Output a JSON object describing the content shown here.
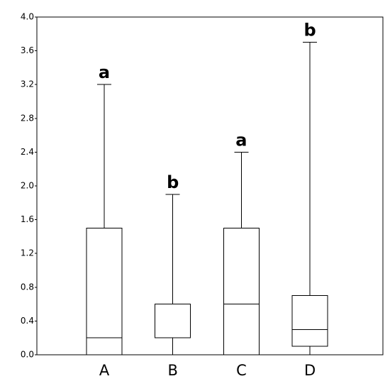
{
  "chart_data": {
    "type": "box",
    "categories": [
      "A",
      "B",
      "C",
      "D"
    ],
    "min": [
      0,
      0,
      0,
      0
    ],
    "q1": [
      0,
      0.2,
      0,
      0.1
    ],
    "median": [
      0.2,
      0.2,
      0.6,
      0.3
    ],
    "q3": [
      1.5,
      0.6,
      1.5,
      0.7
    ],
    "max": [
      3.2,
      1.9,
      2.4,
      3.7
    ],
    "annotations": [
      "a",
      "b",
      "a",
      "b"
    ],
    "color": "#000000",
    "ylim": [
      0,
      4
    ],
    "yticks": [
      {
        "value": 0,
        "label": "0.0"
      },
      0.4,
      0.8,
      1.2,
      1.6,
      {
        "value": 2,
        "label": "2.0"
      },
      2.4,
      2.8,
      3.2,
      3.6,
      {
        "value": 4,
        "label": "4.0"
      }
    ]
  }
}
